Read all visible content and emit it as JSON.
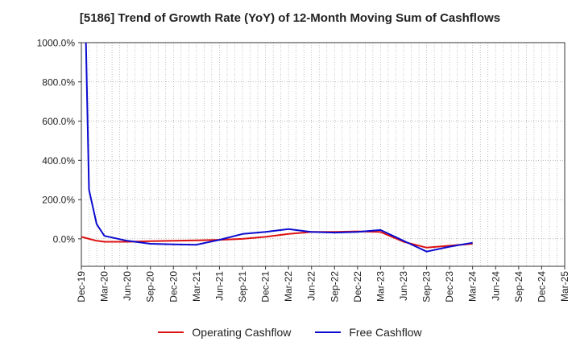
{
  "chart_data": {
    "type": "line",
    "title": "[5186]  Trend of Growth Rate (YoY) of 12-Month Moving Sum of Cashflows",
    "xlabel": "",
    "ylabel": "",
    "x_tick_labels": [
      "Dec-19",
      "Mar-20",
      "Jun-20",
      "Sep-20",
      "Dec-20",
      "Mar-21",
      "Jun-21",
      "Sep-21",
      "Dec-21",
      "Mar-22",
      "Jun-22",
      "Sep-22",
      "Dec-22",
      "Mar-23",
      "Jun-23",
      "Sep-23",
      "Dec-23",
      "Mar-24",
      "Jun-24",
      "Sep-24",
      "Dec-24",
      "Mar-25"
    ],
    "y_tick_labels": [
      "0.0%",
      "200.0%",
      "400.0%",
      "600.0%",
      "800.0%",
      "1000.0%"
    ],
    "y_ticks": [
      0,
      200,
      400,
      600,
      800,
      1000
    ],
    "ylim": [
      -140,
      1000
    ],
    "x_range_months": [
      0,
      63
    ],
    "grid": true,
    "legend_position": "bottom",
    "series": [
      {
        "name": "Operating Cashflow",
        "color": "#dd1111",
        "points": [
          [
            0,
            10
          ],
          [
            1,
            0
          ],
          [
            2,
            -10
          ],
          [
            3,
            -15
          ],
          [
            6,
            -15
          ],
          [
            9,
            -12
          ],
          [
            12,
            -10
          ],
          [
            15,
            -8
          ],
          [
            18,
            -5
          ],
          [
            21,
            0
          ],
          [
            24,
            10
          ],
          [
            27,
            25
          ],
          [
            30,
            35
          ],
          [
            33,
            35
          ],
          [
            36,
            38
          ],
          [
            39,
            35
          ],
          [
            42,
            -15
          ],
          [
            45,
            -45
          ],
          [
            48,
            -35
          ],
          [
            51,
            -25
          ]
        ]
      },
      {
        "name": "Free Cashflow",
        "color": "#0b0bd0",
        "points": [
          [
            0.6,
            1000
          ],
          [
            1,
            250
          ],
          [
            2,
            75
          ],
          [
            3,
            15
          ],
          [
            6,
            -10
          ],
          [
            9,
            -25
          ],
          [
            12,
            -28
          ],
          [
            15,
            -30
          ],
          [
            18,
            -5
          ],
          [
            21,
            25
          ],
          [
            24,
            35
          ],
          [
            27,
            50
          ],
          [
            30,
            35
          ],
          [
            33,
            32
          ],
          [
            36,
            35
          ],
          [
            39,
            45
          ],
          [
            42,
            -10
          ],
          [
            45,
            -65
          ],
          [
            48,
            -40
          ],
          [
            51,
            -20
          ]
        ]
      }
    ]
  }
}
